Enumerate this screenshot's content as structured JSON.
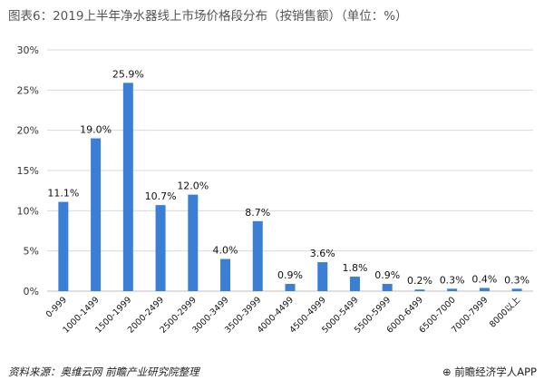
{
  "title": "图表6：2019上半年净水器线上市场价格段分布（按销售额）（单位：%）",
  "source": "资料来源：奥维云网 前瞻产业研究院整理",
  "brand": "前瞻经济学人APP",
  "colors": {
    "bar": "#3a7fd5",
    "grid": "#d9d9d9",
    "axis": "#bfbfbf"
  },
  "chart_data": {
    "type": "bar",
    "title": "图表6：2019上半年净水器线上市场价格段分布（按销售额）（单位：%）",
    "xlabel": "",
    "ylabel": "",
    "ylim": [
      0,
      30
    ],
    "yticks": [
      "0%",
      "5%",
      "10%",
      "15%",
      "20%",
      "25%",
      "30%"
    ],
    "yticks_values": [
      0,
      5,
      10,
      15,
      20,
      25,
      30
    ],
    "grid": true,
    "categories": [
      "0-999",
      "1000-1499",
      "1500-1999",
      "2000-2499",
      "2500-2999",
      "3000-3499",
      "3500-3999",
      "4000-4499",
      "4500-4999",
      "5000-5499",
      "5500-5999",
      "6000-6499",
      "6500-7000",
      "7000-7999",
      "8000以上"
    ],
    "values": [
      11.1,
      19.0,
      25.9,
      10.7,
      12.0,
      4.0,
      8.7,
      0.9,
      3.6,
      1.8,
      0.9,
      0.2,
      0.3,
      0.4,
      0.3
    ],
    "data_labels": [
      "11.1%",
      "19.0%",
      "25.9%",
      "10.7%",
      "12.0%",
      "4.0%",
      "8.7%",
      "0.9%",
      "3.6%",
      "1.8%",
      "0.9%",
      "0.2%",
      "0.3%",
      "0.4%",
      "0.3%"
    ]
  }
}
